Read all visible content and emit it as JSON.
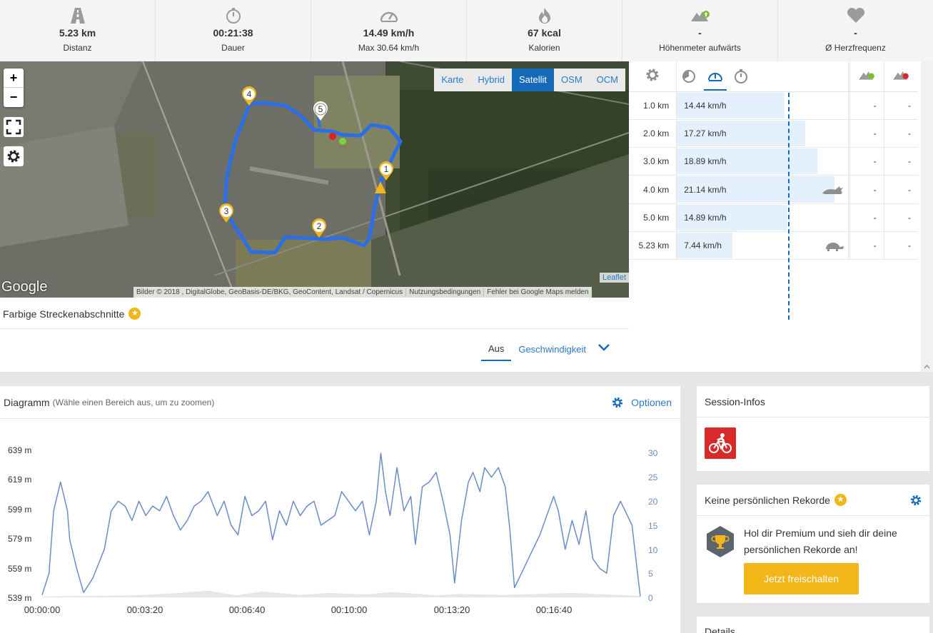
{
  "stats": [
    {
      "value": "5.23 km",
      "label": "Distanz",
      "icon": "road-icon"
    },
    {
      "value": "00:21:38",
      "label": "Dauer",
      "icon": "stopwatch-icon"
    },
    {
      "value": "14.49 km/h",
      "label": "Max 30.64 km/h",
      "icon": "speedometer-icon"
    },
    {
      "value": "67 kcal",
      "label": "Kalorien",
      "icon": "flame-icon"
    },
    {
      "value": "-",
      "label": "Höhenmeter aufwärts",
      "icon": "elevation-up-icon"
    },
    {
      "value": "-",
      "label": "Ø Herzfrequenz",
      "icon": "heart-icon"
    }
  ],
  "map": {
    "zoom_in": "+",
    "zoom_out": "−",
    "layers": [
      "Karte",
      "Hybrid",
      "Satellit",
      "OSM",
      "OCM"
    ],
    "active_layer": "Satellit",
    "google": "Google",
    "attribution": [
      "Bilder © 2018 , DigitalGlobe, GeoBasis-DE/BKG, GeoContent, Landsat / Copernicus",
      "Nutzungsbedingungen",
      "Fehler bei Google Maps melden"
    ],
    "leaflet": "Leaflet",
    "markers": [
      "1",
      "2",
      "3",
      "4",
      "5"
    ]
  },
  "segments": {
    "title": "Farbige Streckenabschnitte",
    "tabs": [
      "Aus",
      "Geschwindigkeit"
    ],
    "active_tab": "Aus"
  },
  "splits": {
    "rows": [
      {
        "km": "1.0 km",
        "speed": "14.44 km/h",
        "speed_value": 14.44,
        "up": "-",
        "down": "-",
        "badge": ""
      },
      {
        "km": "2.0 km",
        "speed": "17.27 km/h",
        "speed_value": 17.27,
        "up": "-",
        "down": "-",
        "badge": ""
      },
      {
        "km": "3.0 km",
        "speed": "18.89 km/h",
        "speed_value": 18.89,
        "up": "-",
        "down": "-",
        "badge": ""
      },
      {
        "km": "4.0 km",
        "speed": "21.14 km/h",
        "speed_value": 21.14,
        "up": "-",
        "down": "-",
        "badge": "rabbit-icon"
      },
      {
        "km": "5.0 km",
        "speed": "14.89 km/h",
        "speed_value": 14.89,
        "up": "-",
        "down": "-",
        "badge": ""
      },
      {
        "km": "5.23 km",
        "speed": "7.44 km/h",
        "speed_value": 7.44,
        "up": "-",
        "down": "-",
        "badge": "turtle-icon"
      }
    ]
  },
  "diagram": {
    "title": "Diagramm",
    "hint": "(Wähle einen Bereich aus, um zu zoomen)",
    "options": "Optionen"
  },
  "chart_data": {
    "type": "line",
    "title": "",
    "x_ticks": [
      "00:00:00",
      "00:03:20",
      "00:06:40",
      "00:10:00",
      "00:13:20",
      "00:16:40"
    ],
    "y_left_ticks": [
      "639 m",
      "619 m",
      "599 m",
      "579 m",
      "559 m",
      "539 m"
    ],
    "y_right_ticks": [
      "30",
      "25",
      "20",
      "15",
      "10",
      "5",
      "0"
    ],
    "ylim_right": [
      0,
      30
    ],
    "duration_seconds": 1298,
    "series": [
      {
        "name": "",
        "color": "#6a8cc9",
        "points": [
          [
            0,
            0.5
          ],
          [
            15,
            5
          ],
          [
            25,
            18
          ],
          [
            40,
            24
          ],
          [
            55,
            18
          ],
          [
            60,
            12
          ],
          [
            75,
            6
          ],
          [
            90,
            1
          ],
          [
            110,
            4
          ],
          [
            135,
            10
          ],
          [
            150,
            18
          ],
          [
            165,
            20
          ],
          [
            180,
            19
          ],
          [
            195,
            16
          ],
          [
            210,
            20
          ],
          [
            225,
            17
          ],
          [
            240,
            19
          ],
          [
            255,
            18
          ],
          [
            270,
            21
          ],
          [
            285,
            17
          ],
          [
            300,
            14
          ],
          [
            315,
            16
          ],
          [
            330,
            19
          ],
          [
            345,
            20
          ],
          [
            360,
            22
          ],
          [
            380,
            17
          ],
          [
            395,
            20
          ],
          [
            410,
            15
          ],
          [
            425,
            13
          ],
          [
            440,
            21
          ],
          [
            455,
            17
          ],
          [
            470,
            18
          ],
          [
            485,
            20
          ],
          [
            500,
            12
          ],
          [
            515,
            18
          ],
          [
            530,
            15
          ],
          [
            545,
            20
          ],
          [
            560,
            17
          ],
          [
            575,
            19
          ],
          [
            590,
            20
          ],
          [
            605,
            15
          ],
          [
            620,
            16
          ],
          [
            635,
            17
          ],
          [
            650,
            22
          ],
          [
            665,
            20
          ],
          [
            680,
            18
          ],
          [
            695,
            20
          ],
          [
            710,
            13
          ],
          [
            725,
            20
          ],
          [
            735,
            30
          ],
          [
            745,
            22
          ],
          [
            755,
            17
          ],
          [
            770,
            27
          ],
          [
            785,
            18
          ],
          [
            800,
            21
          ],
          [
            810,
            11
          ],
          [
            825,
            23
          ],
          [
            840,
            24
          ],
          [
            855,
            26
          ],
          [
            870,
            20
          ],
          [
            885,
            13
          ],
          [
            895,
            3
          ],
          [
            910,
            16
          ],
          [
            925,
            24
          ],
          [
            935,
            26
          ],
          [
            950,
            22
          ],
          [
            960,
            27
          ],
          [
            975,
            25
          ],
          [
            990,
            27
          ],
          [
            1005,
            23
          ],
          [
            1015,
            14
          ],
          [
            1025,
            2
          ],
          [
            1045,
            6
          ],
          [
            1065,
            10
          ],
          [
            1080,
            13
          ],
          [
            1095,
            17
          ],
          [
            1110,
            21
          ],
          [
            1120,
            18
          ],
          [
            1135,
            10
          ],
          [
            1150,
            16
          ],
          [
            1165,
            11
          ],
          [
            1180,
            18
          ],
          [
            1195,
            8
          ],
          [
            1210,
            6
          ],
          [
            1225,
            5
          ],
          [
            1240,
            17
          ],
          [
            1255,
            20
          ],
          [
            1265,
            18
          ],
          [
            1280,
            15
          ],
          [
            1292,
            5
          ],
          [
            1298,
            0.2
          ]
        ]
      },
      {
        "name": "",
        "color": "#e6e6e6",
        "points": [
          [
            0,
            0.2
          ],
          [
            200,
            0.4
          ],
          [
            300,
            0.9
          ],
          [
            360,
            1.4
          ],
          [
            420,
            0.4
          ],
          [
            480,
            1.2
          ],
          [
            560,
            0.5
          ],
          [
            620,
            0.9
          ],
          [
            700,
            0.6
          ],
          [
            760,
            1.1
          ],
          [
            860,
            0.4
          ],
          [
            900,
            0.7
          ],
          [
            1000,
            0.5
          ],
          [
            1150,
            0.9
          ],
          [
            1298,
            0.3
          ]
        ]
      }
    ]
  },
  "sidebar": {
    "session_title": "Session-Infos",
    "sport_icon": "cycling-icon",
    "records_title": "Keine persönlichen Rekorde",
    "premium_text": "Hol dir Premium und sieh dir deine persönlichen Rekorde an!",
    "premium_button": "Jetzt freischalten",
    "details_title": "Details"
  }
}
